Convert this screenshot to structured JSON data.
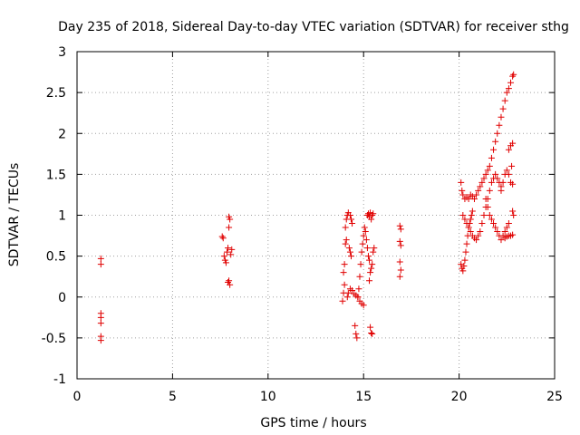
{
  "chart_data": {
    "type": "scatter",
    "title": "Day 235 of 2018, Sidereal Day-to-day VTEC variation (SDTVAR) for receiver sthg",
    "xlabel": "GPS time / hours",
    "ylabel": "SDTVAR / TECUs",
    "xlim": [
      0,
      25
    ],
    "ylim": [
      -1,
      3
    ],
    "xticks": [
      0,
      5,
      10,
      15,
      20,
      25
    ],
    "yticks": [
      -1,
      -0.5,
      0,
      0.5,
      1,
      1.5,
      2,
      2.5,
      3
    ],
    "xtick_labels": [
      "0",
      "5",
      "10",
      "15",
      "20",
      "25"
    ],
    "ytick_labels": [
      "-1",
      "-0.5",
      "0",
      "0.5",
      "1",
      "1.5",
      "2",
      "2.5",
      "3"
    ],
    "grid": true,
    "marker": "+",
    "color": "#e00000",
    "series": [
      {
        "name": "SDTVAR",
        "points": [
          [
            1.25,
            0.47
          ],
          [
            1.25,
            0.4
          ],
          [
            1.25,
            -0.2
          ],
          [
            1.25,
            -0.25
          ],
          [
            1.25,
            -0.32
          ],
          [
            1.25,
            -0.48
          ],
          [
            1.25,
            -0.53
          ],
          [
            7.6,
            0.74
          ],
          [
            7.65,
            0.72
          ],
          [
            7.7,
            0.5
          ],
          [
            7.75,
            0.45
          ],
          [
            7.8,
            0.42
          ],
          [
            7.85,
            0.55
          ],
          [
            7.9,
            0.6
          ],
          [
            7.95,
            0.98
          ],
          [
            8.0,
            0.95
          ],
          [
            7.95,
            0.85
          ],
          [
            7.95,
            0.2
          ],
          [
            8.0,
            0.15
          ],
          [
            7.9,
            0.18
          ],
          [
            8.05,
            0.52
          ],
          [
            8.1,
            0.58
          ],
          [
            13.9,
            -0.05
          ],
          [
            13.95,
            0.05
          ],
          [
            14.0,
            0.15
          ],
          [
            13.95,
            0.3
          ],
          [
            14.0,
            0.4
          ],
          [
            14.05,
            0.65
          ],
          [
            14.1,
            0.7
          ],
          [
            14.05,
            0.85
          ],
          [
            14.1,
            0.95
          ],
          [
            14.15,
            1.0
          ],
          [
            14.2,
            1.03
          ],
          [
            14.3,
            1.0
          ],
          [
            14.35,
            0.95
          ],
          [
            14.4,
            0.9
          ],
          [
            14.25,
            0.6
          ],
          [
            14.3,
            0.55
          ],
          [
            14.35,
            0.5
          ],
          [
            14.15,
            0.0
          ],
          [
            14.2,
            0.05
          ],
          [
            14.3,
            0.1
          ],
          [
            14.4,
            0.08
          ],
          [
            14.5,
            0.04
          ],
          [
            14.6,
            0.02
          ],
          [
            14.7,
            0.0
          ],
          [
            14.8,
            -0.05
          ],
          [
            14.9,
            -0.08
          ],
          [
            15.0,
            -0.1
          ],
          [
            14.55,
            -0.35
          ],
          [
            14.6,
            -0.45
          ],
          [
            14.65,
            -0.5
          ],
          [
            14.7,
            0.0
          ],
          [
            14.75,
            0.1
          ],
          [
            14.8,
            0.25
          ],
          [
            14.85,
            0.4
          ],
          [
            14.9,
            0.55
          ],
          [
            14.95,
            0.65
          ],
          [
            15.0,
            0.75
          ],
          [
            15.05,
            0.85
          ],
          [
            15.1,
            0.8
          ],
          [
            15.15,
            0.7
          ],
          [
            15.2,
            0.6
          ],
          [
            15.25,
            0.5
          ],
          [
            15.3,
            0.45
          ],
          [
            15.2,
            1.0
          ],
          [
            15.25,
            1.02
          ],
          [
            15.3,
            0.98
          ],
          [
            15.35,
            1.03
          ],
          [
            15.4,
            0.95
          ],
          [
            15.45,
            1.0
          ],
          [
            15.5,
            1.02
          ],
          [
            15.3,
            0.2
          ],
          [
            15.35,
            0.3
          ],
          [
            15.4,
            0.35
          ],
          [
            15.45,
            0.4
          ],
          [
            15.5,
            0.55
          ],
          [
            15.55,
            0.6
          ],
          [
            15.35,
            -0.37
          ],
          [
            15.4,
            -0.44
          ],
          [
            15.45,
            -0.45
          ],
          [
            16.9,
            0.87
          ],
          [
            16.95,
            0.83
          ],
          [
            16.9,
            0.68
          ],
          [
            16.95,
            0.63
          ],
          [
            16.9,
            0.43
          ],
          [
            16.95,
            0.33
          ],
          [
            16.9,
            0.25
          ],
          [
            20.1,
            0.4
          ],
          [
            20.15,
            0.35
          ],
          [
            20.2,
            0.32
          ],
          [
            20.25,
            0.38
          ],
          [
            20.3,
            0.45
          ],
          [
            20.35,
            0.55
          ],
          [
            20.4,
            0.65
          ],
          [
            20.45,
            0.75
          ],
          [
            20.5,
            0.85
          ],
          [
            20.55,
            0.9
          ],
          [
            20.6,
            0.95
          ],
          [
            20.65,
            1.0
          ],
          [
            20.7,
            1.05
          ],
          [
            20.1,
            1.4
          ],
          [
            20.15,
            1.3
          ],
          [
            20.2,
            1.25
          ],
          [
            20.3,
            1.2
          ],
          [
            20.4,
            1.22
          ],
          [
            20.5,
            1.2
          ],
          [
            20.6,
            1.25
          ],
          [
            20.7,
            1.23
          ],
          [
            20.8,
            1.2
          ],
          [
            20.9,
            1.25
          ],
          [
            20.2,
            1.0
          ],
          [
            20.3,
            0.95
          ],
          [
            20.4,
            0.9
          ],
          [
            20.5,
            0.85
          ],
          [
            20.6,
            0.8
          ],
          [
            20.7,
            0.75
          ],
          [
            20.8,
            0.72
          ],
          [
            20.9,
            0.7
          ],
          [
            21.0,
            0.75
          ],
          [
            21.1,
            0.8
          ],
          [
            21.2,
            0.9
          ],
          [
            21.3,
            1.0
          ],
          [
            21.4,
            1.1
          ],
          [
            21.5,
            1.2
          ],
          [
            21.6,
            1.3
          ],
          [
            21.7,
            1.4
          ],
          [
            21.8,
            1.45
          ],
          [
            21.9,
            1.5
          ],
          [
            22.0,
            1.45
          ],
          [
            22.1,
            1.4
          ],
          [
            22.2,
            1.35
          ],
          [
            21.0,
            1.3
          ],
          [
            21.1,
            1.35
          ],
          [
            21.2,
            1.4
          ],
          [
            21.3,
            1.45
          ],
          [
            21.4,
            1.5
          ],
          [
            21.5,
            1.55
          ],
          [
            21.6,
            1.6
          ],
          [
            21.7,
            1.7
          ],
          [
            21.8,
            1.8
          ],
          [
            21.9,
            1.9
          ],
          [
            22.0,
            2.0
          ],
          [
            22.1,
            2.1
          ],
          [
            22.2,
            2.2
          ],
          [
            22.3,
            2.3
          ],
          [
            22.4,
            2.4
          ],
          [
            22.5,
            2.5
          ],
          [
            22.6,
            2.55
          ],
          [
            22.7,
            2.62
          ],
          [
            22.8,
            2.7
          ],
          [
            22.85,
            2.72
          ],
          [
            21.4,
            1.2
          ],
          [
            21.5,
            1.1
          ],
          [
            21.6,
            1.0
          ],
          [
            21.7,
            0.95
          ],
          [
            21.8,
            0.9
          ],
          [
            21.9,
            0.85
          ],
          [
            22.0,
            0.8
          ],
          [
            22.1,
            0.75
          ],
          [
            22.2,
            0.7
          ],
          [
            22.3,
            0.75
          ],
          [
            22.4,
            0.8
          ],
          [
            22.5,
            0.85
          ],
          [
            22.6,
            0.9
          ],
          [
            22.2,
            1.3
          ],
          [
            22.3,
            1.4
          ],
          [
            22.4,
            1.5
          ],
          [
            22.5,
            1.55
          ],
          [
            22.6,
            1.5
          ],
          [
            22.7,
            1.4
          ],
          [
            22.8,
            1.38
          ],
          [
            22.6,
            1.8
          ],
          [
            22.7,
            1.85
          ],
          [
            22.8,
            1.88
          ],
          [
            22.75,
            1.6
          ],
          [
            22.8,
            1.05
          ],
          [
            22.85,
            1.0
          ],
          [
            22.4,
            0.72
          ],
          [
            22.5,
            0.74
          ],
          [
            22.6,
            0.75
          ],
          [
            22.7,
            0.75
          ],
          [
            22.8,
            0.76
          ]
        ]
      }
    ]
  }
}
